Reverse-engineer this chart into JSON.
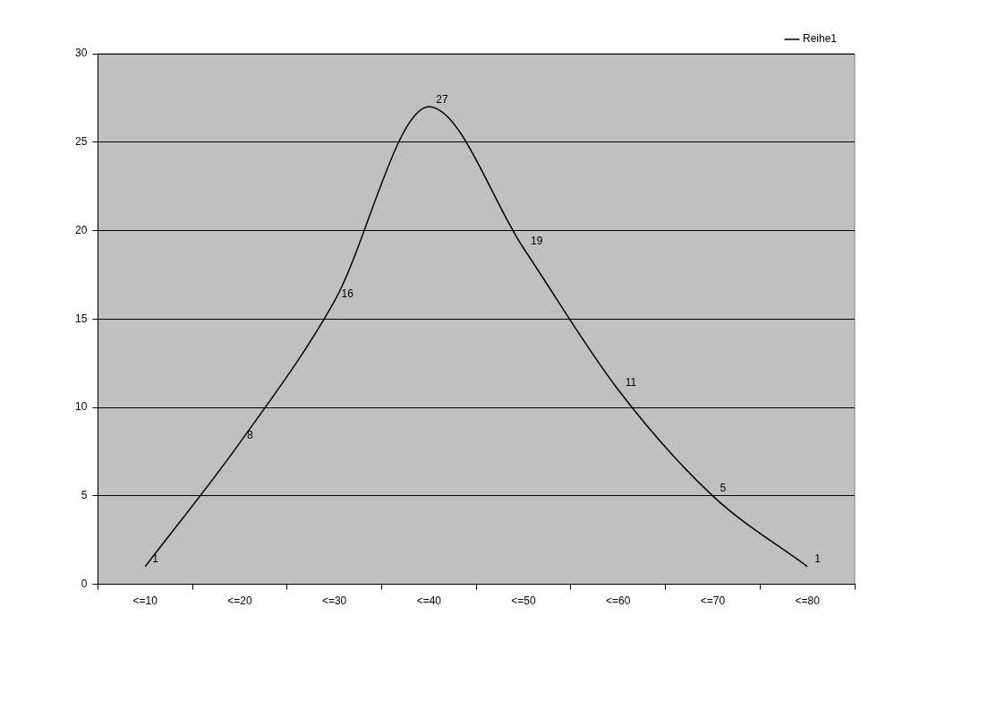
{
  "chart_data": {
    "type": "line",
    "categories": [
      "<=10",
      "<=20",
      "<=30",
      "<=40",
      "<=50",
      "<=60",
      "<=70",
      "<=80"
    ],
    "series": [
      {
        "name": "Reihe1",
        "color": "#000000",
        "values": [
          1,
          8,
          16,
          27,
          19,
          11,
          5,
          1
        ]
      }
    ],
    "ylim": [
      0,
      30
    ],
    "yticks": [
      0,
      5,
      10,
      15,
      20,
      25,
      30
    ],
    "grid": "y",
    "legend": "top right",
    "marker": "none",
    "line_style": "solid",
    "data_labels": true
  }
}
